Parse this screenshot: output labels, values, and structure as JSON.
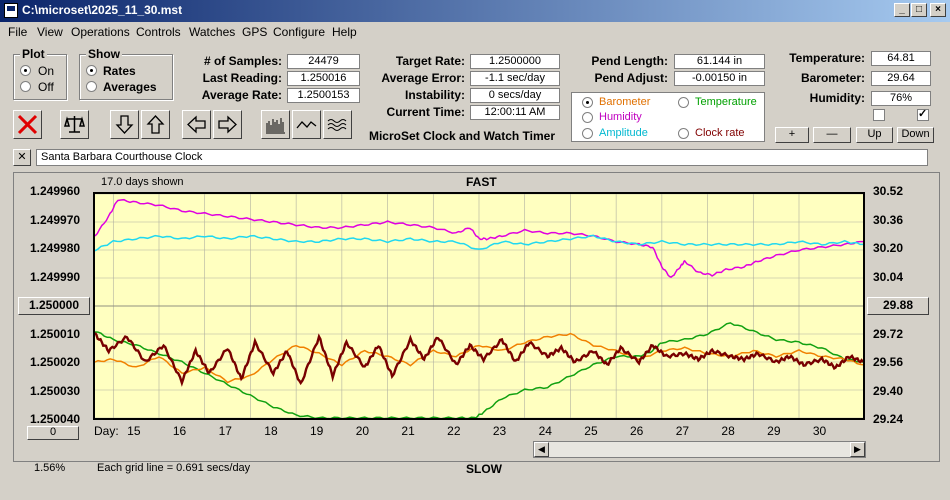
{
  "window": {
    "title": "C:\\microset\\2025_11_30.mst"
  },
  "menu": [
    "File",
    "View",
    "Operations",
    "Controls",
    "Watches",
    "GPS",
    "Configure",
    "Help"
  ],
  "plot_group": {
    "title": "Plot",
    "options": [
      "On",
      "Off"
    ],
    "selected": "On"
  },
  "show_group": {
    "title": "Show",
    "options": [
      "Rates",
      "Averages"
    ],
    "selected": "Rates"
  },
  "readings": {
    "samples_label": "# of Samples:",
    "samples": "24479",
    "last_label": "Last Reading:",
    "last": "1.250016",
    "avg_label": "Average Rate:",
    "avg": "1.2500153",
    "target_label": "Target Rate:",
    "target": "1.2500000",
    "avgerr_label": "Average Error:",
    "avgerr": "-1.1 sec/day",
    "instab_label": "Instability:",
    "instab": "0 secs/day",
    "time_label": "Current Time:",
    "time": "12:00:11 AM",
    "pendlen_label": "Pend Length:",
    "pendlen": "61.144 in",
    "pendadj_label": "Pend Adjust:",
    "pendadj": "-0.00150 in",
    "temp_label": "Temperature:",
    "temp": "64.81",
    "baro_label": "Barometer:",
    "baro": "29.64",
    "hum_label": "Humidity:",
    "hum": "76%"
  },
  "app_caption": "MicroSet Clock and Watch Timer",
  "params": [
    {
      "label": "Barometer",
      "color": "#e07000",
      "selected": true
    },
    {
      "label": "Temperature",
      "color": "#00a000",
      "selected": false
    },
    {
      "label": "Humidity",
      "color": "#c000c0",
      "selected": false
    },
    {
      "label": "Amplitude",
      "color": "#00b8d0",
      "selected": false
    },
    {
      "label": "Clock rate",
      "color": "#800000",
      "selected": false
    }
  ],
  "buttons": {
    "plus": "+",
    "minus": "—",
    "up": "Up",
    "down": "Down"
  },
  "notes": "Santa Barbara Courthouse Clock",
  "chart": {
    "days_shown": "17.0 days shown",
    "top_label": "FAST",
    "bottom_label": "SLOW",
    "grid_note": "Each grid line = 0.691 secs/day",
    "percent": "1.56%",
    "left_center_button": "1.250000",
    "right_center_button": "29.88",
    "left_bottom_button": "0",
    "day_label": "Day:"
  },
  "chart_data": {
    "type": "line",
    "xlabel": "Day:",
    "x_ticks": [
      "15",
      "16",
      "17",
      "18",
      "19",
      "20",
      "21",
      "22",
      "23",
      "24",
      "25",
      "26",
      "27",
      "28",
      "29",
      "30"
    ],
    "xlim": [
      14.1,
      30.9
    ],
    "left_ticks": [
      "1.249960",
      "1.249970",
      "1.249980",
      "1.249990",
      "1.250000",
      "1.250010",
      "1.250020",
      "1.250030",
      "1.250040"
    ],
    "ylim_left": [
      1.25004,
      1.24996
    ],
    "right_ticks": [
      "30.52",
      "30.36",
      "30.20",
      "30.04",
      "29.88",
      "29.72",
      "29.56",
      "29.40",
      "29.24"
    ],
    "ylim_right": [
      29.24,
      30.52
    ],
    "series": [
      {
        "name": "Humidity",
        "color": "#e000e0",
        "x": [
          14.1,
          14.4,
          14.6,
          15.0,
          15.5,
          16,
          16.5,
          17,
          17.5,
          18,
          18.5,
          19,
          19.5,
          20,
          20.5,
          21,
          21.5,
          22,
          22.3,
          22.5,
          22.7,
          23,
          23.5,
          24,
          24.5,
          25,
          25.5,
          26,
          26.3,
          26.5,
          26.7,
          26.9,
          27,
          27.3,
          27.6,
          27.9,
          28.3,
          28.6,
          29,
          29.5,
          30,
          30.5,
          30.9
        ],
        "y": [
          1.249975,
          1.249968,
          1.249962,
          1.249963,
          1.249964,
          1.249966,
          1.249967,
          1.249968,
          1.249969,
          1.24997,
          1.249971,
          1.249972,
          1.249972,
          1.249971,
          1.24997,
          1.249971,
          1.249972,
          1.249974,
          1.249972,
          1.249976,
          1.249976,
          1.249975,
          1.249973,
          1.249974,
          1.249974,
          1.249975,
          1.249977,
          1.249978,
          1.249979,
          1.249986,
          1.24999,
          1.249986,
          1.249984,
          1.249988,
          1.249989,
          1.249987,
          1.249986,
          1.249984,
          1.249982,
          1.24998,
          1.249979,
          1.249978,
          1.249977
        ]
      },
      {
        "name": "Amplitude",
        "color": "#20d8f0",
        "x": [
          14.1,
          14.5,
          15,
          15.5,
          16,
          16.5,
          17,
          17.5,
          18,
          18.5,
          19,
          19.5,
          20,
          20.5,
          21,
          21.5,
          22,
          22.5,
          23,
          23.5,
          24,
          24.5,
          25,
          25.5,
          26,
          26.5,
          27,
          27.5,
          28,
          28.5,
          29,
          29.5,
          30,
          30.5,
          30.9
        ],
        "y": [
          1.24998,
          1.249977,
          1.249976,
          1.249975,
          1.249976,
          1.249975,
          1.249976,
          1.249975,
          1.249976,
          1.249977,
          1.249977,
          1.249976,
          1.249976,
          1.249977,
          1.249976,
          1.249977,
          1.249977,
          1.24998,
          1.249977,
          1.249978,
          1.249977,
          1.249976,
          1.249975,
          1.249977,
          1.249978,
          1.249977,
          1.249978,
          1.249978,
          1.249978,
          1.249978,
          1.249978,
          1.249977,
          1.249978,
          1.249977,
          1.249978
        ]
      },
      {
        "name": "Temperature",
        "color": "#10a010",
        "x": [
          14.1,
          14.5,
          15,
          15.5,
          16,
          16.5,
          17,
          17.5,
          18,
          18.5,
          19,
          19.5,
          20,
          20.5,
          21,
          21.5,
          22,
          22.4,
          22.6,
          23,
          23.5,
          24,
          24.5,
          25,
          25.5,
          26,
          26.3,
          26.5,
          27,
          27.5,
          28,
          28.5,
          29,
          29.5,
          30,
          30.5,
          30.9
        ],
        "y": [
          1.250009,
          1.250012,
          1.250014,
          1.250017,
          1.25002,
          1.250024,
          1.250028,
          1.250032,
          1.250036,
          1.250039,
          1.25004,
          1.25004,
          1.25004,
          1.25004,
          1.25004,
          1.25004,
          1.25004,
          1.25004,
          1.250038,
          1.250033,
          1.25003,
          1.250029,
          1.250025,
          1.250021,
          1.250018,
          1.250018,
          1.250016,
          1.250013,
          1.250012,
          1.25001,
          1.250006,
          1.250009,
          1.250012,
          1.250013,
          1.250015,
          1.250019,
          1.25002
        ]
      },
      {
        "name": "Barometer",
        "color": "#f08000",
        "x": [
          14.1,
          14.5,
          15,
          15.5,
          16,
          16.5,
          17,
          17.5,
          18,
          18.5,
          19,
          19.5,
          20,
          20.5,
          21,
          21.5,
          22,
          22.5,
          23,
          23.5,
          24,
          24.5,
          25,
          25.5,
          26,
          26.5,
          27,
          27.5,
          28,
          28.5,
          29,
          29.5,
          30,
          30.5,
          30.9
        ],
        "y": [
          1.25002,
          1.250019,
          1.250022,
          1.250018,
          1.250024,
          1.250022,
          1.250027,
          1.250025,
          1.250019,
          1.250014,
          1.250017,
          1.250021,
          1.250016,
          1.250018,
          1.250021,
          1.250016,
          1.250018,
          1.250014,
          1.250016,
          1.250013,
          1.250011,
          1.25001,
          1.250014,
          1.250016,
          1.250019,
          1.250016,
          1.250015,
          1.250017,
          1.250018,
          1.250016,
          1.250018,
          1.250016,
          1.250018,
          1.250019,
          1.250021
        ]
      },
      {
        "name": "Clock rate",
        "color": "#780000",
        "x": [
          14.1,
          14.4,
          14.8,
          15.2,
          15.6,
          16,
          16.3,
          16.6,
          17,
          17.3,
          17.6,
          18,
          18.3,
          18.6,
          19,
          19.3,
          19.6,
          20,
          20.3,
          20.6,
          21,
          21.3,
          21.6,
          22,
          22.3,
          22.6,
          23,
          23.3,
          23.6,
          24,
          24.3,
          24.6,
          25,
          25.3,
          25.6,
          26,
          26.3,
          26.6,
          27,
          27.3,
          27.6,
          28,
          28.3,
          28.6,
          29,
          29.3,
          29.6,
          30,
          30.3,
          30.6,
          30.9
        ],
        "y": [
          1.25001,
          1.250016,
          1.250011,
          1.25002,
          1.250014,
          1.250027,
          1.250016,
          1.250024,
          1.250015,
          1.250026,
          1.250013,
          1.250024,
          1.250016,
          1.250028,
          1.250011,
          1.250025,
          1.250013,
          1.250022,
          1.250014,
          1.250025,
          1.250012,
          1.250019,
          1.250011,
          1.250021,
          1.250014,
          1.250019,
          1.250012,
          1.25002,
          1.250013,
          1.250018,
          1.250015,
          1.25002,
          1.250016,
          1.250021,
          1.250015,
          1.25002,
          1.250014,
          1.250018,
          1.250017,
          1.250019,
          1.250016,
          1.250018,
          1.250019,
          1.250017,
          1.25002,
          1.250018,
          1.250021,
          1.250019,
          1.250022,
          1.250018,
          1.25002
        ]
      }
    ]
  }
}
